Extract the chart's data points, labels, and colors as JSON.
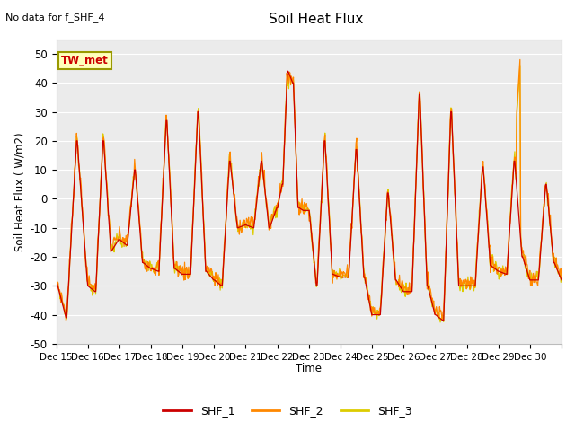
{
  "title": "Soil Heat Flux",
  "subtitle": "No data for f_SHF_4",
  "ylabel": "Soil Heat Flux ( W/m2)",
  "xlabel": "Time",
  "box_label": "TW_met",
  "ylim": [
    -50,
    55
  ],
  "yticks": [
    -50,
    -40,
    -30,
    -20,
    -10,
    0,
    10,
    20,
    30,
    40,
    50
  ],
  "background_color": "#ebebeb",
  "grid_color": "#ffffff",
  "colors": {
    "SHF_1": "#cc0000",
    "SHF_2": "#ff8800",
    "SHF_3": "#ddcc00"
  },
  "legend_labels": [
    "SHF_1",
    "SHF_2",
    "SHF_3"
  ],
  "figsize": [
    6.4,
    4.8
  ],
  "dpi": 100
}
